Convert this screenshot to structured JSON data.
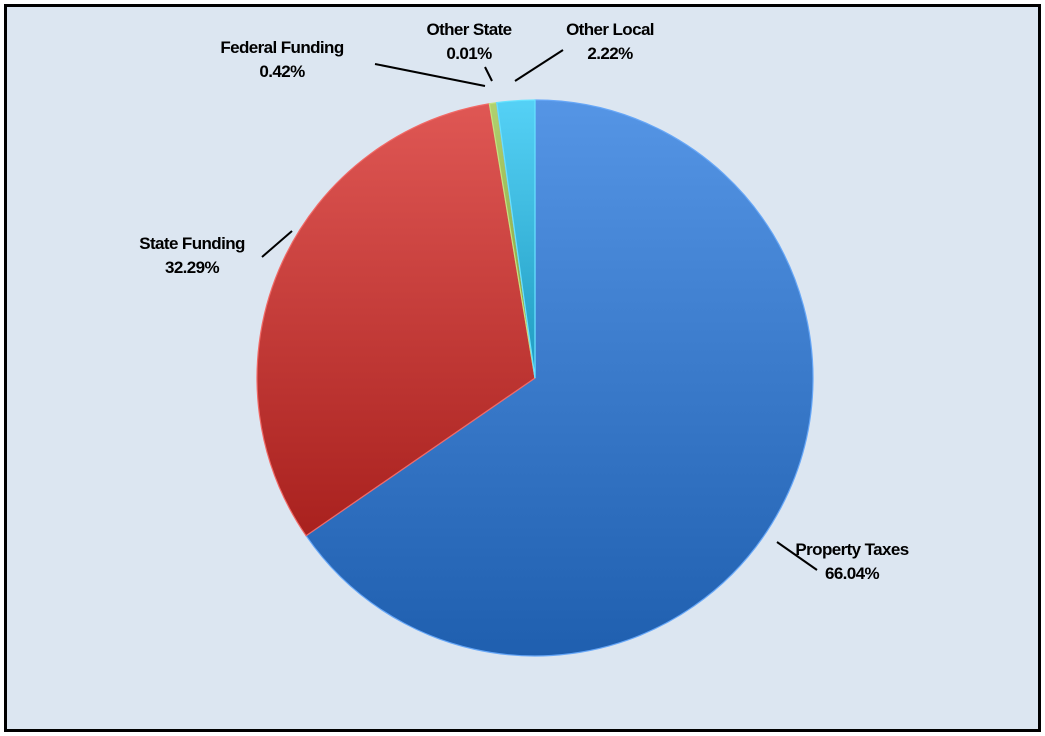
{
  "chart_data": {
    "type": "pie",
    "title": "",
    "start_angle_deg": 0,
    "direction": "clockwise",
    "slices": [
      {
        "name": "Property Taxes",
        "value": 66.04,
        "label": "66.04%",
        "color": "#3f7fcf"
      },
      {
        "name": "State Funding",
        "value": 32.29,
        "label": "32.29%",
        "color": "#c9413e"
      },
      {
        "name": "Federal Funding",
        "value": 0.42,
        "label": "0.42%",
        "color": "#9bbb59"
      },
      {
        "name": "Other State",
        "value": 0.01,
        "label": "0.01%",
        "color": "#8064a2"
      },
      {
        "name": "Other Local",
        "value": 2.22,
        "label": "2.22%",
        "color": "#3fbbe0"
      }
    ],
    "legend": "none",
    "background_color": "#dce6f1",
    "border_color": "#000000"
  }
}
